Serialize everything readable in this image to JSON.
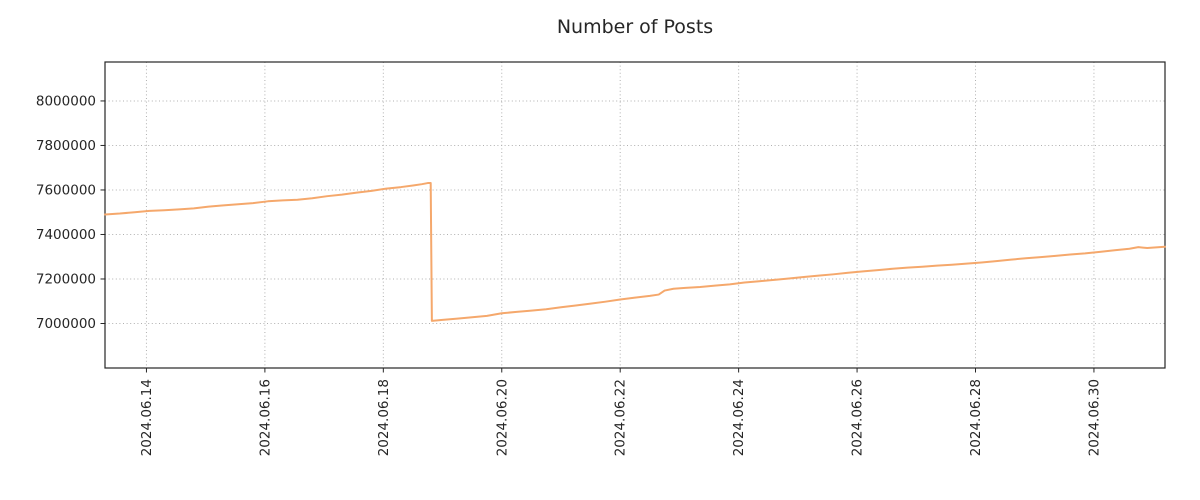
{
  "colors": {
    "line": "#f5a86c",
    "axis": "#262626",
    "grid": "#b0b0b0",
    "background": "#ffffff"
  },
  "chart_data": {
    "type": "line",
    "title": "Number of Posts",
    "xlabel": "",
    "ylabel": "",
    "legend": false,
    "grid": true,
    "grid_style": "dotted",
    "x_unit": "day of month, June 2024 (14 = 2024.06.14, 31 = 2024.07.01)",
    "xlim": [
      13.3,
      31.2
    ],
    "ylim": [
      6800000,
      8175000
    ],
    "x_ticks": [
      {
        "x": 14,
        "label": "2024.06.14"
      },
      {
        "x": 16,
        "label": "2024.06.16"
      },
      {
        "x": 18,
        "label": "2024.06.18"
      },
      {
        "x": 20,
        "label": "2024.06.20"
      },
      {
        "x": 22,
        "label": "2024.06.22"
      },
      {
        "x": 24,
        "label": "2024.06.24"
      },
      {
        "x": 26,
        "label": "2024.06.26"
      },
      {
        "x": 28,
        "label": "2024.06.28"
      },
      {
        "x": 30,
        "label": "2024.06.30"
      }
    ],
    "y_ticks": [
      7000000,
      7200000,
      7400000,
      7600000,
      7800000,
      8000000
    ],
    "series": [
      {
        "name": "Number of Posts",
        "color": "#f5a86c",
        "line_width": 2,
        "points": [
          [
            13.3,
            7490000
          ],
          [
            13.55,
            7494000
          ],
          [
            13.8,
            7500000
          ],
          [
            14.05,
            7506000
          ],
          [
            14.3,
            7509000
          ],
          [
            14.55,
            7513000
          ],
          [
            14.8,
            7517000
          ],
          [
            15.05,
            7525000
          ],
          [
            15.3,
            7531000
          ],
          [
            15.55,
            7536000
          ],
          [
            15.8,
            7541000
          ],
          [
            16.05,
            7549000
          ],
          [
            16.3,
            7553000
          ],
          [
            16.55,
            7556000
          ],
          [
            16.8,
            7563000
          ],
          [
            17.05,
            7572000
          ],
          [
            17.3,
            7579000
          ],
          [
            17.55,
            7588000
          ],
          [
            17.8,
            7596000
          ],
          [
            18.05,
            7606000
          ],
          [
            18.3,
            7613000
          ],
          [
            18.5,
            7620000
          ],
          [
            18.65,
            7626000
          ],
          [
            18.75,
            7631000
          ],
          [
            18.8,
            7631000
          ],
          [
            18.82,
            7012000
          ],
          [
            19.0,
            7016000
          ],
          [
            19.25,
            7022000
          ],
          [
            19.5,
            7028000
          ],
          [
            19.75,
            7034000
          ],
          [
            20.0,
            7046000
          ],
          [
            20.25,
            7052000
          ],
          [
            20.5,
            7058000
          ],
          [
            20.75,
            7064000
          ],
          [
            21.0,
            7073000
          ],
          [
            21.25,
            7081000
          ],
          [
            21.5,
            7089000
          ],
          [
            21.75,
            7098000
          ],
          [
            22.0,
            7108000
          ],
          [
            22.25,
            7116000
          ],
          [
            22.5,
            7124000
          ],
          [
            22.65,
            7130000
          ],
          [
            22.75,
            7148000
          ],
          [
            22.9,
            7156000
          ],
          [
            23.1,
            7160000
          ],
          [
            23.35,
            7164000
          ],
          [
            23.6,
            7170000
          ],
          [
            23.85,
            7176000
          ],
          [
            24.1,
            7184000
          ],
          [
            24.35,
            7190000
          ],
          [
            24.6,
            7196000
          ],
          [
            24.85,
            7202000
          ],
          [
            25.1,
            7209000
          ],
          [
            25.35,
            7215000
          ],
          [
            25.6,
            7221000
          ],
          [
            25.85,
            7228000
          ],
          [
            26.1,
            7234000
          ],
          [
            26.35,
            7240000
          ],
          [
            26.6,
            7246000
          ],
          [
            26.85,
            7251000
          ],
          [
            27.1,
            7255000
          ],
          [
            27.35,
            7260000
          ],
          [
            27.6,
            7264000
          ],
          [
            27.85,
            7269000
          ],
          [
            28.1,
            7274000
          ],
          [
            28.35,
            7280000
          ],
          [
            28.6,
            7287000
          ],
          [
            28.85,
            7293000
          ],
          [
            29.1,
            7298000
          ],
          [
            29.35,
            7304000
          ],
          [
            29.6,
            7310000
          ],
          [
            29.85,
            7315000
          ],
          [
            30.1,
            7322000
          ],
          [
            30.35,
            7329000
          ],
          [
            30.6,
            7336000
          ],
          [
            30.75,
            7343000
          ],
          [
            30.9,
            7339000
          ],
          [
            31.05,
            7342000
          ],
          [
            31.2,
            7345000
          ]
        ]
      }
    ]
  }
}
